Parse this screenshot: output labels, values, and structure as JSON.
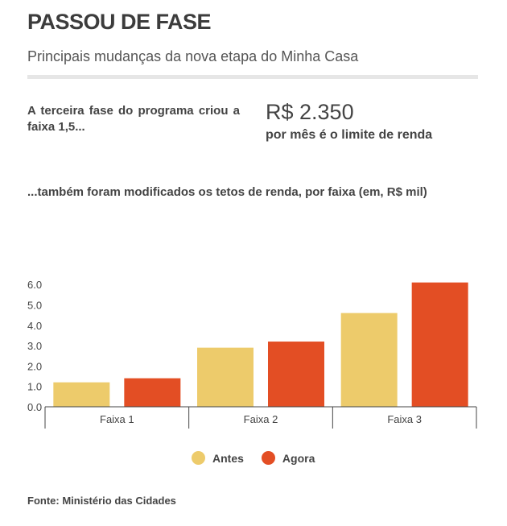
{
  "header": {
    "title": "PASSOU DE FASE",
    "subtitle": "Principais mudanças da nova etapa do Minha Casa"
  },
  "intro": {
    "text": "A terceira fase do programa criou a faixa 1,5...",
    "value": "R$ 2.350",
    "value_caption": "por mês é o limite de renda"
  },
  "chart_heading": "...também foram modificados os tetos de renda, por faixa (em, R$ mil)",
  "colors": {
    "antes": "#EDCB6B",
    "agora": "#E34E24",
    "axis": "#444444"
  },
  "chart_data": {
    "type": "bar",
    "categories": [
      "Faixa 1",
      "Faixa 2",
      "Faixa 3"
    ],
    "series": [
      {
        "name": "Antes",
        "values": [
          1.2,
          2.9,
          4.6
        ]
      },
      {
        "name": "Agora",
        "values": [
          1.4,
          3.2,
          6.1
        ]
      }
    ],
    "yticks": [
      "0.0",
      "1.0",
      "2.0",
      "3.0",
      "4.0",
      "5.0",
      "6.0"
    ],
    "ylim": [
      0,
      6
    ],
    "xlabel": "",
    "ylabel": "",
    "grid": false,
    "legend_position": "bottom"
  },
  "legend": {
    "antes": "Antes",
    "agora": "Agora"
  },
  "source": "Fonte: Ministério das Cidades"
}
